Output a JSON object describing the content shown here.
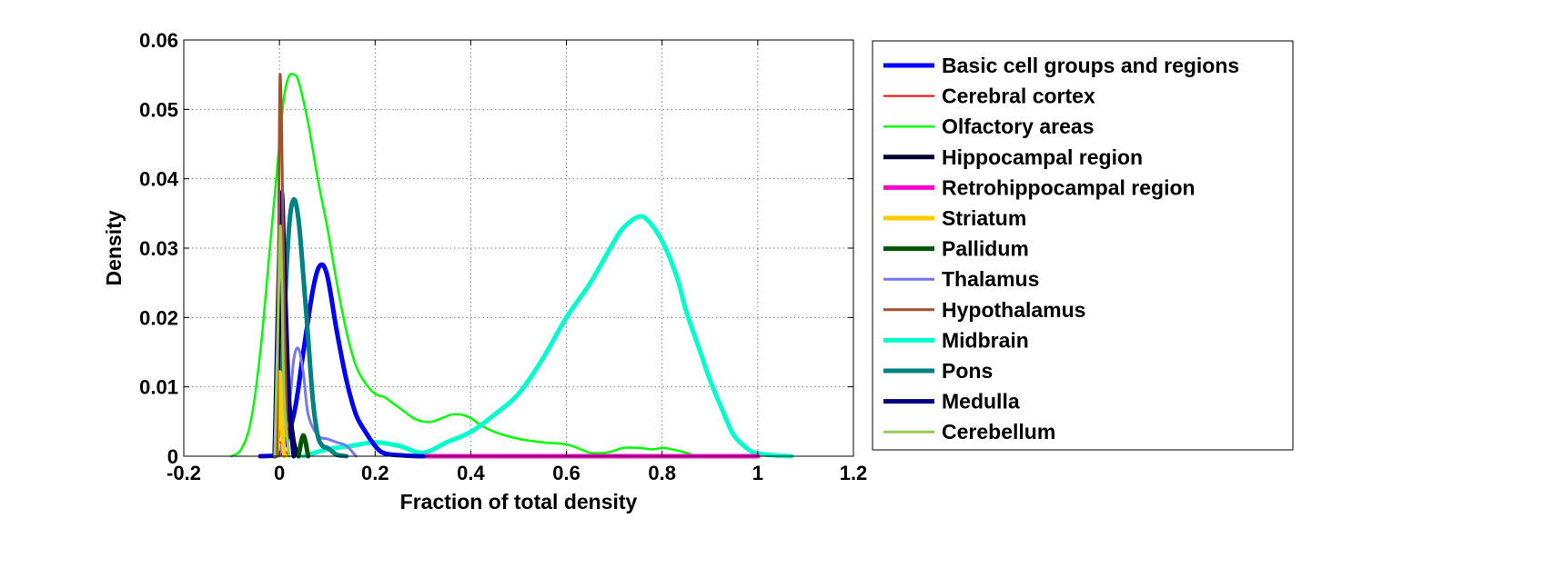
{
  "chart_data": {
    "type": "line",
    "title": "",
    "xlabel": "Fraction of total density",
    "ylabel": "Density",
    "xlim": [
      -0.2,
      1.2
    ],
    "ylim": [
      0,
      0.06
    ],
    "xticks": [
      -0.2,
      0,
      0.2,
      0.4,
      0.6,
      0.8,
      1,
      1.2
    ],
    "xtick_labels": [
      "-0.2",
      "0",
      "0.2",
      "0.4",
      "0.6",
      "0.8",
      "1",
      "1.2"
    ],
    "yticks": [
      0,
      0.01,
      0.02,
      0.03,
      0.04,
      0.05,
      0.06
    ],
    "ytick_labels": [
      "0",
      "0.01",
      "0.02",
      "0.03",
      "0.04",
      "0.05",
      "0.06"
    ],
    "grid": true,
    "legend_position": "outside-right",
    "series": [
      {
        "name": "Basic cell groups and regions",
        "color": "#0000ff",
        "width": 5,
        "x": [
          -0.04,
          0.0,
          0.03,
          0.05,
          0.07,
          0.085,
          0.1,
          0.12,
          0.14,
          0.16,
          0.18,
          0.2,
          0.22,
          0.26,
          0.3
        ],
        "y": [
          0,
          0.0002,
          0.006,
          0.015,
          0.024,
          0.0275,
          0.026,
          0.018,
          0.011,
          0.006,
          0.0035,
          0.0015,
          0.0004,
          0.0001,
          0
        ]
      },
      {
        "name": "Cerebral cortex",
        "color": "#ff0000",
        "width": 2,
        "x": [
          -0.01,
          0.0,
          0.01,
          0.02
        ],
        "y": [
          0,
          0.002,
          0.001,
          0
        ]
      },
      {
        "name": "Olfactory areas",
        "color": "#00ff00",
        "width": 2.5,
        "x": [
          -0.1,
          -0.08,
          -0.06,
          -0.04,
          -0.02,
          0.0,
          0.01,
          0.02,
          0.03,
          0.04,
          0.06,
          0.08,
          0.1,
          0.12,
          0.14,
          0.16,
          0.18,
          0.2,
          0.22,
          0.24,
          0.26,
          0.28,
          0.3,
          0.32,
          0.34,
          0.36,
          0.38,
          0.4,
          0.42,
          0.45,
          0.5,
          0.55,
          0.6,
          0.63,
          0.65,
          0.68,
          0.7,
          0.72,
          0.75,
          0.78,
          0.8,
          0.82,
          0.85,
          0.87
        ],
        "y": [
          0,
          0.001,
          0.005,
          0.015,
          0.03,
          0.045,
          0.052,
          0.0548,
          0.055,
          0.054,
          0.048,
          0.04,
          0.033,
          0.025,
          0.018,
          0.013,
          0.0105,
          0.009,
          0.0085,
          0.0075,
          0.0065,
          0.0055,
          0.005,
          0.005,
          0.0055,
          0.006,
          0.006,
          0.0055,
          0.0045,
          0.0035,
          0.0025,
          0.002,
          0.0017,
          0.001,
          0.0005,
          0.0005,
          0.0008,
          0.0012,
          0.0012,
          0.001,
          0.0012,
          0.001,
          0.0005,
          0
        ]
      },
      {
        "name": "Hippocampal region",
        "color": "#000033",
        "width": 5,
        "x": [
          -0.01,
          0.0,
          0.005,
          0.01,
          0.02,
          0.03,
          0.04
        ],
        "y": [
          0,
          0.02,
          0.03,
          0.02,
          0.008,
          0.002,
          0
        ]
      },
      {
        "name": "Retrohippocampal region",
        "color": "#ff00cc",
        "width": 5,
        "x": [
          0.3,
          0.5,
          0.7,
          0.9,
          1.0
        ],
        "y": [
          0,
          0,
          0,
          0,
          0
        ]
      },
      {
        "name": "Striatum",
        "color": "#ffcc00",
        "width": 5,
        "x": [
          -0.005,
          0.0,
          0.005,
          0.01
        ],
        "y": [
          0,
          0.012,
          0.005,
          0
        ]
      },
      {
        "name": "Pallidum",
        "color": "#005500",
        "width": 5,
        "x": [
          0.04,
          0.05,
          0.06
        ],
        "y": [
          0,
          0.003,
          0
        ]
      },
      {
        "name": "Thalamus",
        "color": "#7777ee",
        "width": 3,
        "x": [
          0.0,
          0.02,
          0.03,
          0.04,
          0.05,
          0.06,
          0.08,
          0.1,
          0.12,
          0.14,
          0.16
        ],
        "y": [
          0,
          0.007,
          0.014,
          0.0155,
          0.012,
          0.006,
          0.003,
          0.0025,
          0.002,
          0.0015,
          0
        ]
      },
      {
        "name": "Hypothalamus",
        "color": "#a0522d",
        "width": 3,
        "x": [
          -0.005,
          0.0,
          0.002,
          0.005,
          0.01,
          0.015,
          0.02
        ],
        "y": [
          0,
          0.048,
          0.0545,
          0.045,
          0.02,
          0.005,
          0
        ]
      },
      {
        "name": "Midbrain",
        "color": "#00ffcc",
        "width": 5,
        "x": [
          0.05,
          0.1,
          0.15,
          0.2,
          0.25,
          0.3,
          0.35,
          0.4,
          0.45,
          0.5,
          0.55,
          0.6,
          0.65,
          0.7,
          0.72,
          0.75,
          0.77,
          0.8,
          0.83,
          0.85,
          0.88,
          0.9,
          0.93,
          0.95,
          0.98,
          1.0,
          1.04,
          1.07
        ],
        "y": [
          0,
          0.001,
          0.0015,
          0.002,
          0.0015,
          0.0005,
          0.002,
          0.0035,
          0.006,
          0.009,
          0.014,
          0.02,
          0.025,
          0.031,
          0.033,
          0.0345,
          0.034,
          0.031,
          0.026,
          0.021,
          0.015,
          0.011,
          0.006,
          0.003,
          0.001,
          0.0004,
          0.0001,
          0
        ]
      },
      {
        "name": "Pons",
        "color": "#008080",
        "width": 5,
        "x": [
          -0.01,
          0.0,
          0.01,
          0.02,
          0.03,
          0.04,
          0.05,
          0.06,
          0.07,
          0.08,
          0.09,
          0.1,
          0.11,
          0.12,
          0.14
        ],
        "y": [
          0,
          0.005,
          0.02,
          0.033,
          0.037,
          0.034,
          0.026,
          0.017,
          0.008,
          0.003,
          0.0015,
          0.0012,
          0.0007,
          0.0002,
          0
        ]
      },
      {
        "name": "Medulla",
        "color": "#000080",
        "width": 5,
        "x": [
          -0.01,
          0.0,
          0.005,
          0.01,
          0.02,
          0.03
        ],
        "y": [
          0,
          0.03,
          0.038,
          0.028,
          0.008,
          0
        ]
      },
      {
        "name": "Cerebellum",
        "color": "#99cc55",
        "width": 3,
        "x": [
          -0.01,
          0.0,
          0.002,
          0.005,
          0.01,
          0.02
        ],
        "y": [
          0,
          0.028,
          0.033,
          0.025,
          0.008,
          0
        ]
      }
    ]
  }
}
